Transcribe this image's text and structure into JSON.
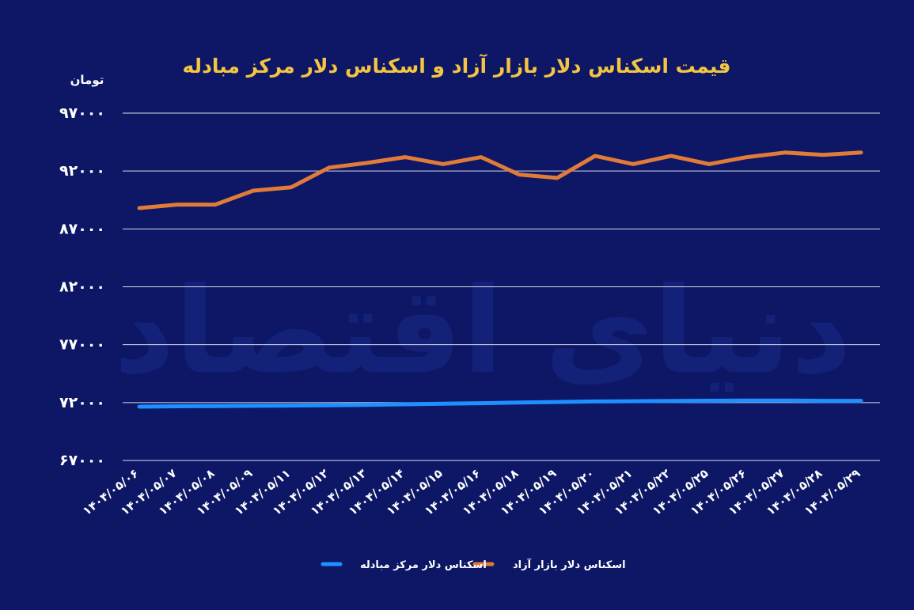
{
  "chart_data": {
    "type": "line",
    "title": "قیمت اسکناس دلار بازار آزاد و اسکناس دلار مرکز مبادله",
    "ylabel": "تومان",
    "xlabel": "",
    "ylim": [
      67000,
      97000
    ],
    "yticks": [
      97000,
      92000,
      87000,
      82000,
      77000,
      72000,
      67000
    ],
    "ytick_labels": [
      "۹۷۰۰۰",
      "۹۲۰۰۰",
      "۸۷۰۰۰",
      "۸۲۰۰۰",
      "۷۷۰۰۰",
      "۷۲۰۰۰",
      "۶۷۰۰۰"
    ],
    "categories": [
      "۱۴۰۴/۰۵/۰۶",
      "۱۴۰۴/۰۵/۰۷",
      "۱۴۰۴/۰۵/۰۸",
      "۱۴۰۴/۰۵/۰۹",
      "۱۴۰۴/۰۵/۱۱",
      "۱۴۰۴/۰۵/۱۲",
      "۱۴۰۴/۰۵/۱۳",
      "۱۴۰۴/۰۵/۱۴",
      "۱۴۰۴/۰۵/۱۵",
      "۱۴۰۴/۰۵/۱۶",
      "۱۴۰۴/۰۵/۱۸",
      "۱۴۰۴/۰۵/۱۹",
      "۱۴۰۴/۰۵/۲۰",
      "۱۴۰۴/۰۵/۲۱",
      "۱۴۰۴/۰۵/۲۲",
      "۱۴۰۴/۰۵/۲۵",
      "۱۴۰۴/۰۵/۲۶",
      "۱۴۰۴/۰۵/۲۷",
      "۱۴۰۴/۰۵/۲۸",
      "۱۴۰۴/۰۵/۲۹"
    ],
    "series": [
      {
        "name": "اسکناس دلار بازار آزاد",
        "color": "#e07b39",
        "values": [
          88800,
          89100,
          89100,
          90300,
          90600,
          92300,
          92700,
          93200,
          92600,
          93200,
          91700,
          91400,
          93300,
          92600,
          93300,
          92600,
          93200,
          93600,
          93400,
          93600
        ]
      },
      {
        "name": "اسکناس دلار مرکز مبادله",
        "color": "#1e90ff",
        "values": [
          71650,
          71680,
          71700,
          71720,
          71740,
          71760,
          71800,
          71850,
          71900,
          71950,
          72000,
          72050,
          72100,
          72120,
          72140,
          72160,
          72180,
          72180,
          72150,
          72150
        ]
      }
    ],
    "grid": true,
    "legend_position": "bottom"
  },
  "watermark": {
    "text": "دنیای اقتصاد",
    "color": "#1a2a8a"
  }
}
